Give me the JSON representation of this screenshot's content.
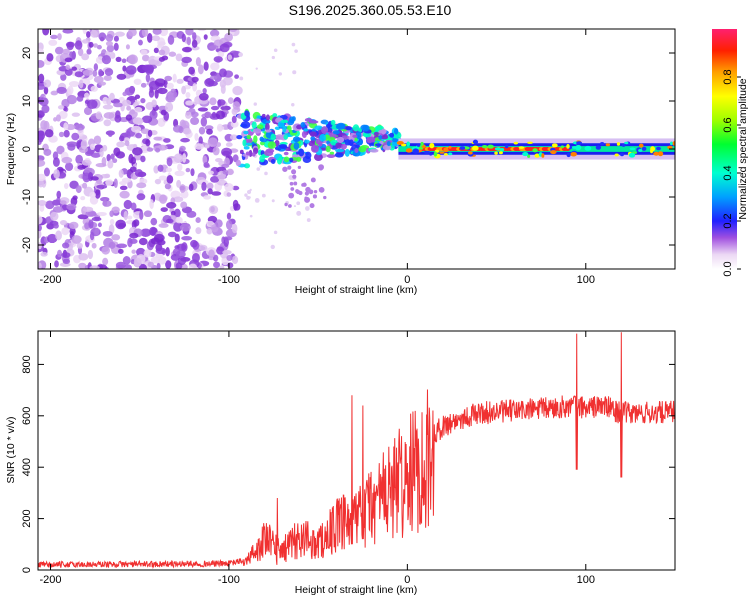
{
  "title": "S196.2025.360.05.53.E10",
  "chart_data": [
    {
      "type": "heatmap",
      "name": "spectrogram",
      "xlabel": "Height of straight line (km)",
      "ylabel": "Frequency (Hz)",
      "xlim": [
        -207,
        150
      ],
      "ylim": [
        -25,
        25
      ],
      "xticks": [
        -200,
        -100,
        0,
        100
      ],
      "yticks": [
        -20,
        -10,
        0,
        10,
        20
      ],
      "ridge_frequency": 0,
      "noise_region": [
        -207,
        -95
      ],
      "scatter_region": [
        -95,
        -5
      ],
      "signal_region": [
        -5,
        150
      ],
      "colorbar": {
        "label": "Normalized spectral amplitude",
        "range": [
          0.0,
          1.0
        ],
        "ticks": [
          0.0,
          0.2,
          0.4,
          0.6,
          0.8
        ],
        "tick_labels": [
          "0.0",
          "0.2",
          "0.4",
          "0.6",
          "0.8"
        ]
      }
    },
    {
      "type": "line",
      "name": "snr",
      "xlabel": "Height of straight line (km)",
      "ylabel": "SNR (10 * v/v)",
      "xlim": [
        -207,
        150
      ],
      "ylim": [
        0,
        930
      ],
      "xticks": [
        -200,
        -100,
        0,
        100
      ],
      "yticks": [
        0,
        200,
        400,
        600,
        800
      ],
      "color": "#f03030",
      "series_envelope": {
        "x": [
          -207,
          -100,
          -90,
          -80,
          -70,
          -60,
          -50,
          -40,
          -30,
          -20,
          -10,
          0,
          10,
          20,
          30,
          40,
          60,
          80,
          95,
          100,
          110,
          120,
          130,
          150
        ],
        "y": [
          20,
          25,
          40,
          140,
          90,
          150,
          120,
          200,
          220,
          300,
          360,
          420,
          500,
          560,
          590,
          610,
          620,
          630,
          640,
          630,
          640,
          610,
          610,
          615
        ]
      },
      "spikes": [
        {
          "x": 95,
          "y": 920,
          "low": 390
        },
        {
          "x": 120,
          "y": 925,
          "low": 360
        },
        {
          "x": -31,
          "y": 680,
          "low": 100
        },
        {
          "x": -25,
          "y": 640,
          "low": 120
        },
        {
          "x": -73,
          "y": 280,
          "low": 20
        }
      ]
    }
  ]
}
